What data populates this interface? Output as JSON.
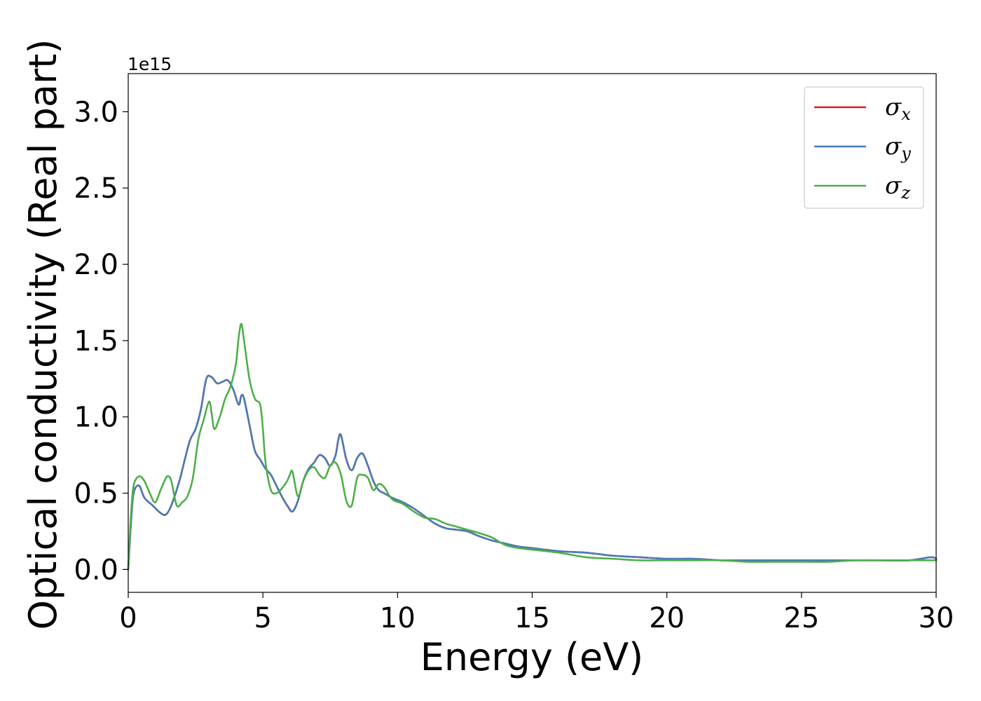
{
  "chart_data": {
    "type": "line",
    "title": "",
    "xlabel": "Energy (eV)",
    "ylabel": "Optical conductivity (Real part)",
    "y_offset_text": "1e15",
    "xlim": [
      0,
      30
    ],
    "ylim": [
      -0.15,
      3.25
    ],
    "x_ticks": [
      0,
      5,
      10,
      15,
      20,
      25,
      30
    ],
    "x_tick_labels": [
      "0",
      "5",
      "10",
      "15",
      "20",
      "25",
      "30"
    ],
    "y_ticks": [
      0.0,
      0.5,
      1.0,
      1.5,
      2.0,
      2.5,
      3.0
    ],
    "y_tick_labels": [
      "0.0",
      "0.5",
      "1.0",
      "1.5",
      "2.0",
      "2.5",
      "3.0"
    ],
    "grid": false,
    "legend_position": "top-right",
    "series": [
      {
        "name": "σx",
        "color": "#e41a1c",
        "x": [
          0,
          0.1,
          0.2,
          0.4,
          0.6,
          0.9,
          1.2,
          1.4,
          1.6,
          1.9,
          2.1,
          2.3,
          2.5,
          2.7,
          2.9,
          3.1,
          3.3,
          3.5,
          3.7,
          3.9,
          4.1,
          4.2,
          4.3,
          4.5,
          4.7,
          4.9,
          5.1,
          5.3,
          5.5,
          5.7,
          5.9,
          6.1,
          6.3,
          6.5,
          6.7,
          6.9,
          7.1,
          7.3,
          7.5,
          7.7,
          7.8,
          7.9,
          8.1,
          8.3,
          8.5,
          8.7,
          8.9,
          9.1,
          9.3,
          9.5,
          9.8,
          10.2,
          10.6,
          11,
          11.4,
          11.8,
          12.2,
          12.6,
          13,
          13.5,
          14,
          14.5,
          15,
          16,
          17,
          17.5,
          18,
          19,
          20,
          21,
          22,
          23,
          24,
          25,
          26,
          27,
          28,
          29,
          29.8,
          30
        ],
        "values": [
          0.0,
          0.3,
          0.5,
          0.55,
          0.47,
          0.42,
          0.37,
          0.36,
          0.42,
          0.58,
          0.72,
          0.85,
          0.92,
          1.05,
          1.25,
          1.26,
          1.22,
          1.23,
          1.24,
          1.18,
          1.08,
          1.14,
          1.12,
          0.95,
          0.78,
          0.72,
          0.66,
          0.62,
          0.55,
          0.48,
          0.42,
          0.38,
          0.45,
          0.58,
          0.66,
          0.7,
          0.75,
          0.73,
          0.68,
          0.75,
          0.85,
          0.88,
          0.72,
          0.65,
          0.73,
          0.76,
          0.68,
          0.58,
          0.52,
          0.5,
          0.47,
          0.44,
          0.4,
          0.35,
          0.3,
          0.27,
          0.26,
          0.25,
          0.22,
          0.19,
          0.17,
          0.15,
          0.14,
          0.12,
          0.11,
          0.1,
          0.09,
          0.08,
          0.07,
          0.07,
          0.06,
          0.06,
          0.06,
          0.06,
          0.06,
          0.06,
          0.06,
          0.06,
          0.08,
          0.07
        ]
      },
      {
        "name": "σy",
        "color": "#4a7bb5",
        "x": [
          0,
          0.1,
          0.2,
          0.4,
          0.6,
          0.9,
          1.2,
          1.4,
          1.6,
          1.9,
          2.1,
          2.3,
          2.5,
          2.7,
          2.9,
          3.1,
          3.3,
          3.5,
          3.7,
          3.9,
          4.1,
          4.2,
          4.3,
          4.5,
          4.7,
          4.9,
          5.1,
          5.3,
          5.5,
          5.7,
          5.9,
          6.1,
          6.3,
          6.5,
          6.7,
          6.9,
          7.1,
          7.3,
          7.5,
          7.7,
          7.8,
          7.9,
          8.1,
          8.3,
          8.5,
          8.7,
          8.9,
          9.1,
          9.3,
          9.5,
          9.8,
          10.2,
          10.6,
          11,
          11.4,
          11.8,
          12.2,
          12.6,
          13,
          13.5,
          14,
          14.5,
          15,
          16,
          17,
          17.5,
          18,
          19,
          20,
          21,
          22,
          23,
          24,
          25,
          26,
          27,
          28,
          29,
          29.8,
          30
        ],
        "values": [
          0.0,
          0.3,
          0.5,
          0.55,
          0.47,
          0.42,
          0.37,
          0.36,
          0.42,
          0.58,
          0.72,
          0.85,
          0.92,
          1.05,
          1.25,
          1.26,
          1.22,
          1.23,
          1.24,
          1.18,
          1.08,
          1.14,
          1.12,
          0.95,
          0.78,
          0.72,
          0.66,
          0.62,
          0.55,
          0.48,
          0.42,
          0.38,
          0.45,
          0.58,
          0.66,
          0.7,
          0.75,
          0.73,
          0.68,
          0.75,
          0.85,
          0.88,
          0.72,
          0.65,
          0.73,
          0.76,
          0.68,
          0.58,
          0.52,
          0.5,
          0.47,
          0.44,
          0.4,
          0.35,
          0.3,
          0.27,
          0.26,
          0.25,
          0.22,
          0.19,
          0.17,
          0.15,
          0.14,
          0.12,
          0.11,
          0.1,
          0.09,
          0.08,
          0.07,
          0.07,
          0.06,
          0.06,
          0.06,
          0.06,
          0.06,
          0.06,
          0.06,
          0.06,
          0.08,
          0.07
        ]
      },
      {
        "name": "σz",
        "color": "#4daf4a",
        "x": [
          0,
          0.1,
          0.2,
          0.4,
          0.6,
          0.8,
          1.0,
          1.2,
          1.4,
          1.5,
          1.6,
          1.8,
          2.0,
          2.2,
          2.4,
          2.6,
          2.8,
          3.0,
          3.1,
          3.2,
          3.4,
          3.6,
          3.8,
          4.0,
          4.1,
          4.2,
          4.3,
          4.5,
          4.7,
          4.9,
          5.0,
          5.1,
          5.3,
          5.5,
          5.7,
          5.9,
          6.0,
          6.1,
          6.3,
          6.5,
          6.7,
          6.9,
          7.1,
          7.3,
          7.5,
          7.7,
          7.9,
          8.1,
          8.3,
          8.5,
          8.7,
          8.9,
          9.1,
          9.3,
          9.5,
          9.8,
          10.2,
          10.6,
          11,
          11.4,
          11.8,
          12.2,
          12.6,
          13,
          13.5,
          14,
          14.5,
          15,
          16,
          17,
          18,
          19,
          20,
          21,
          22,
          23,
          24,
          25,
          26,
          27,
          28,
          29,
          30
        ],
        "values": [
          0.0,
          0.35,
          0.55,
          0.61,
          0.58,
          0.5,
          0.44,
          0.52,
          0.6,
          0.61,
          0.58,
          0.42,
          0.44,
          0.48,
          0.6,
          0.85,
          0.98,
          1.1,
          1.02,
          0.92,
          1.0,
          1.12,
          1.2,
          1.35,
          1.52,
          1.61,
          1.5,
          1.25,
          1.12,
          1.08,
          0.92,
          0.7,
          0.52,
          0.5,
          0.53,
          0.58,
          0.62,
          0.64,
          0.48,
          0.58,
          0.65,
          0.67,
          0.62,
          0.6,
          0.68,
          0.7,
          0.62,
          0.45,
          0.42,
          0.6,
          0.62,
          0.6,
          0.52,
          0.56,
          0.54,
          0.46,
          0.43,
          0.38,
          0.34,
          0.33,
          0.3,
          0.28,
          0.26,
          0.24,
          0.21,
          0.16,
          0.14,
          0.13,
          0.11,
          0.08,
          0.07,
          0.06,
          0.06,
          0.06,
          0.06,
          0.05,
          0.05,
          0.05,
          0.05,
          0.06,
          0.06,
          0.06,
          0.06
        ]
      }
    ]
  }
}
